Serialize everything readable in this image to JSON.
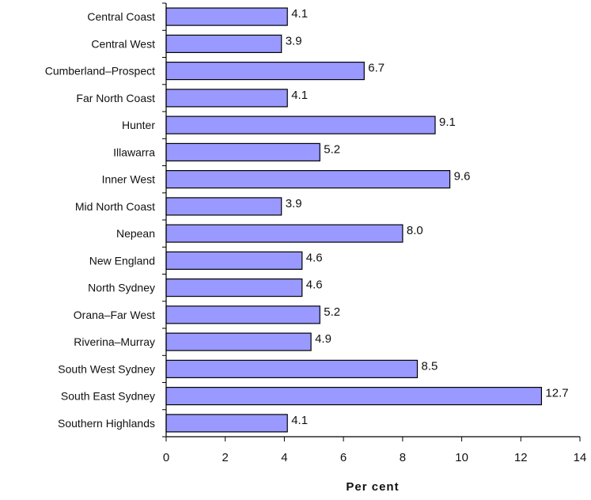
{
  "chart_data": {
    "type": "bar",
    "orientation": "horizontal",
    "categories": [
      "Central Coast",
      "Central West",
      "Cumberland–Prospect",
      "Far North Coast",
      "Hunter",
      "Illawarra",
      "Inner West",
      "Mid North Coast",
      "Nepean",
      "New England",
      "North Sydney",
      "Orana–Far West",
      "Riverina–Murray",
      "South West Sydney",
      "South East Sydney",
      "Southern Highlands"
    ],
    "values": [
      4.1,
      3.9,
      6.7,
      4.1,
      9.1,
      5.2,
      9.6,
      3.9,
      8.0,
      4.6,
      4.6,
      5.2,
      4.9,
      8.5,
      12.7,
      4.1
    ],
    "value_labels": [
      "4.1",
      "3.9",
      "6.7",
      "4.1",
      "9.1",
      "5.2",
      "9.6",
      "3.9",
      "8.0",
      "4.6",
      "4.6",
      "5.2",
      "4.9",
      "8.5",
      "12.7",
      "4.1"
    ],
    "xlabel": "Per cent",
    "ylabel": "",
    "xlim": [
      0,
      14
    ],
    "xticks": [
      0,
      2,
      4,
      6,
      8,
      10,
      12,
      14
    ],
    "grid": false,
    "legend": "none",
    "bar_color": "#9999ff",
    "bar_edge_color": "#000000"
  }
}
